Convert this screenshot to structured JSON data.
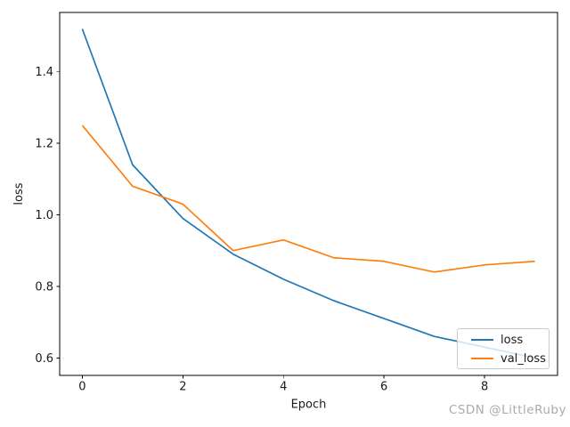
{
  "watermark": "CSDN @LittleRuby",
  "chart_data": {
    "type": "line",
    "title": "",
    "xlabel": "Epoch",
    "ylabel": "loss",
    "x": [
      0,
      1,
      2,
      3,
      4,
      5,
      6,
      7,
      8,
      9
    ],
    "series": [
      {
        "name": "loss",
        "color": "#1f77b4",
        "values": [
          1.52,
          1.14,
          0.99,
          0.89,
          0.82,
          0.76,
          0.71,
          0.66,
          0.63,
          0.6
        ]
      },
      {
        "name": "val_loss",
        "color": "#ff7f0e",
        "values": [
          1.25,
          1.08,
          1.03,
          0.9,
          0.93,
          0.88,
          0.87,
          0.84,
          0.86,
          0.87
        ]
      }
    ],
    "xlim": [
      -0.45,
      9.45
    ],
    "ylim": [
      0.551,
      1.566
    ],
    "xticks": [
      0,
      2,
      4,
      6,
      8
    ],
    "xtick_labels": [
      "0",
      "2",
      "4",
      "6",
      "8"
    ],
    "yticks": [
      0.6,
      0.8,
      1.0,
      1.2,
      1.4
    ],
    "ytick_labels": [
      "0.6",
      "0.8",
      "1.0",
      "1.2",
      "1.4"
    ],
    "grid": false,
    "legend_position": "lower right",
    "axis_color": "#000000",
    "line_width": 1.7
  }
}
